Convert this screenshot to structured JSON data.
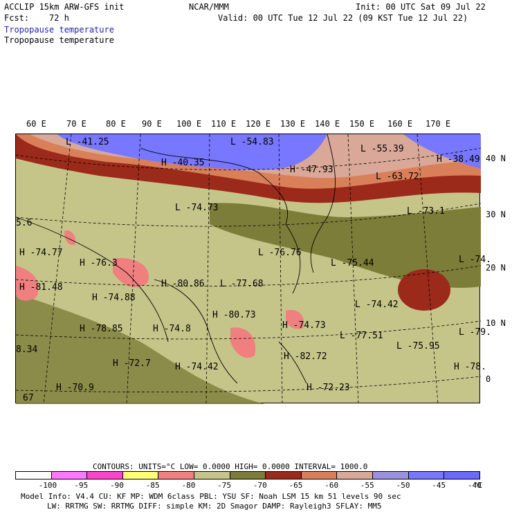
{
  "header": {
    "title": "ACCLIP 15km ARW-GFS init",
    "center": "NCAR/MMM",
    "init": "Init: 00 UTC Sat 09 Jul 22",
    "fcst_label": "Fcst:",
    "fcst_value": "72 h",
    "valid": "Valid: 00 UTC Tue 12 Jul 22 (09 KST Tue 12 Jul 22)",
    "field1": "Tropopause temperature",
    "field2": "Tropopause temperature"
  },
  "lon_ticks": [
    "60 E",
    "70 E",
    "80 E",
    "90 E",
    "100 E",
    "110 E",
    "120 E",
    "130 E",
    "140 E",
    "150 E",
    "160 E",
    "170 E"
  ],
  "lat_ticks": [
    "40 N",
    "30 N",
    "20 N",
    "10 N",
    "0"
  ],
  "labels": [
    {
      "t": "L",
      "v": "-41.25"
    },
    {
      "t": "L",
      "v": "-54.83"
    },
    {
      "t": "L",
      "v": "-55.39"
    },
    {
      "t": "H",
      "v": "-40.35"
    },
    {
      "t": "H",
      "v": "-47.93"
    },
    {
      "t": "H",
      "v": "-38.49"
    },
    {
      "t": "L",
      "v": "-63.72"
    },
    {
      "t": "L",
      "v": "-74.73"
    },
    {
      "t": "L",
      "v": "-73.1"
    },
    {
      "t": "H",
      "v": "-74.77"
    },
    {
      "t": "H",
      "v": "-76.3"
    },
    {
      "t": "L",
      "v": "-76.76"
    },
    {
      "t": "L",
      "v": "-75.44"
    },
    {
      "t": "L",
      "v": "-74."
    },
    {
      "t": "H",
      "v": "-81.48"
    },
    {
      "t": "H",
      "v": "-74.88"
    },
    {
      "t": "H",
      "v": "-80.86"
    },
    {
      "t": "L",
      "v": "-77.68"
    },
    {
      "t": "L",
      "v": "-74.42"
    },
    {
      "t": "H",
      "v": "-80.73"
    },
    {
      "t": "H",
      "v": "-74.73"
    },
    {
      "t": "H",
      "v": "-78.85"
    },
    {
      "t": "H",
      "v": "-74.8"
    },
    {
      "t": "L",
      "v": "-77.51"
    },
    {
      "t": "L",
      "v": "-79."
    },
    {
      "t": "L",
      "v": "-75.95"
    },
    {
      "t": "H",
      "v": "-72.7"
    },
    {
      "t": "H",
      "v": "-74.42"
    },
    {
      "t": "H",
      "v": "-82.72"
    },
    {
      "t": "H",
      "v": "-78."
    },
    {
      "t": "H",
      "v": "-70.9"
    },
    {
      "t": "H",
      "v": "-72.23"
    },
    {
      "t": "",
      "v": "5.6"
    },
    {
      "t": "",
      "v": "8.34"
    },
    {
      "t": "",
      "v": "67"
    }
  ],
  "contours": {
    "text": "CONTOURS:  UNITS=°C  LOW=  0.0000       HIGH=  0.0000       INTERVAL=   1000.0"
  },
  "colorbar": {
    "colors": [
      "#ffffff",
      "#ff77ff",
      "#ff44cc",
      "#ffff77",
      "#f08080",
      "#c5c58a",
      "#7d7d3a",
      "#9b2a1a",
      "#d9805a",
      "#d9a898",
      "#9a90dd",
      "#7777ff",
      "#6a6aff"
    ],
    "labels": [
      "-100",
      "-95",
      "-90",
      "-85",
      "-80",
      "-75",
      "-70",
      "-65",
      "-60",
      "-55",
      "-50",
      "-45",
      "-40"
    ],
    "unit": "°C"
  },
  "footer": {
    "line1": "Model Info: V4.4     CU: KF      MP: WDM 6class  PBL: YSU      SF: Noah LSM    15 km   51 levels   90 sec",
    "line2": "LW: RRTMG     SW: RRTMG   DIFF: simple KM: 2D Smagor DAMP: Rayleigh3  SFLAY: MM5"
  }
}
